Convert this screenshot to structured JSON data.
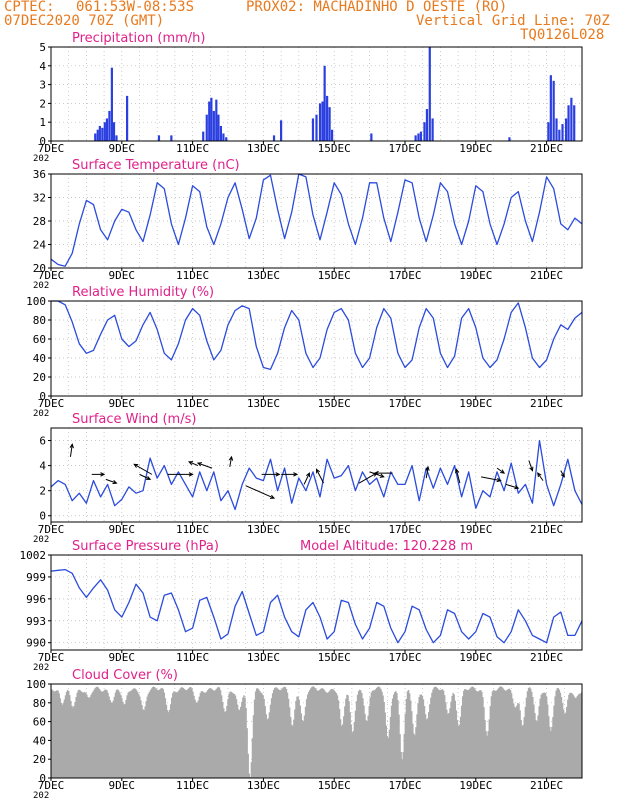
{
  "header": {
    "line1_left": "CPTEC:",
    "line1_coords": "061:53W-08:53S",
    "line1_station": "PROX02: MACHADINHO D OESTE (RO)",
    "line2_left": "07DEC2020 70Z (GMT)",
    "line2_right": "Vertical Grid Line: 70Z",
    "line3_right": "TQ0126L028"
  },
  "colors": {
    "header": "#e87a1e",
    "title": "#e0218a",
    "line": "#2b4bdc",
    "bar": "#2b3fe0",
    "cloud": "#aaaaaa",
    "arrow": "#000000"
  },
  "x_tick_labels": [
    "7DEC",
    "9DEC",
    "11DEC",
    "13DEC",
    "15DEC",
    "17DEC",
    "19DEC",
    "21DEC"
  ],
  "x_tick_sublabel": "202",
  "model_altitude": "Model Altitude: 120.228 m",
  "chart_data": [
    {
      "type": "bar",
      "title": "Precipitation (mm/h)",
      "x_range_days": [
        7,
        22
      ],
      "ylim": [
        0,
        5
      ],
      "yticks": [
        0,
        1,
        2,
        3,
        4,
        5
      ],
      "bars": [
        {
          "x": 8.25,
          "y": 0.4
        },
        {
          "x": 8.32,
          "y": 0.6
        },
        {
          "x": 8.38,
          "y": 0.8
        },
        {
          "x": 8.45,
          "y": 0.7
        },
        {
          "x": 8.52,
          "y": 1.0
        },
        {
          "x": 8.58,
          "y": 1.2
        },
        {
          "x": 8.65,
          "y": 1.6
        },
        {
          "x": 8.72,
          "y": 3.9
        },
        {
          "x": 8.78,
          "y": 1.0
        },
        {
          "x": 8.85,
          "y": 0.3
        },
        {
          "x": 9.15,
          "y": 2.4
        },
        {
          "x": 10.05,
          "y": 0.3
        },
        {
          "x": 10.4,
          "y": 0.3
        },
        {
          "x": 11.3,
          "y": 0.5
        },
        {
          "x": 11.4,
          "y": 1.4
        },
        {
          "x": 11.47,
          "y": 2.1
        },
        {
          "x": 11.53,
          "y": 2.3
        },
        {
          "x": 11.6,
          "y": 1.6
        },
        {
          "x": 11.67,
          "y": 2.2
        },
        {
          "x": 11.73,
          "y": 1.4
        },
        {
          "x": 11.8,
          "y": 0.8
        },
        {
          "x": 11.87,
          "y": 0.4
        },
        {
          "x": 11.95,
          "y": 0.2
        },
        {
          "x": 13.3,
          "y": 0.3
        },
        {
          "x": 13.5,
          "y": 1.1
        },
        {
          "x": 14.4,
          "y": 1.2
        },
        {
          "x": 14.5,
          "y": 1.4
        },
        {
          "x": 14.6,
          "y": 2.0
        },
        {
          "x": 14.67,
          "y": 2.1
        },
        {
          "x": 14.73,
          "y": 4.0
        },
        {
          "x": 14.8,
          "y": 2.4
        },
        {
          "x": 14.87,
          "y": 1.8
        },
        {
          "x": 14.94,
          "y": 0.6
        },
        {
          "x": 16.05,
          "y": 0.4
        },
        {
          "x": 17.3,
          "y": 0.3
        },
        {
          "x": 17.38,
          "y": 0.4
        },
        {
          "x": 17.45,
          "y": 0.5
        },
        {
          "x": 17.55,
          "y": 1.0
        },
        {
          "x": 17.62,
          "y": 1.7
        },
        {
          "x": 17.7,
          "y": 5.0
        },
        {
          "x": 17.78,
          "y": 1.2
        },
        {
          "x": 19.95,
          "y": 0.2
        },
        {
          "x": 21.05,
          "y": 1.0
        },
        {
          "x": 21.12,
          "y": 3.5
        },
        {
          "x": 21.2,
          "y": 3.2
        },
        {
          "x": 21.28,
          "y": 1.2
        },
        {
          "x": 21.36,
          "y": 0.6
        },
        {
          "x": 21.45,
          "y": 0.9
        },
        {
          "x": 21.55,
          "y": 1.2
        },
        {
          "x": 21.62,
          "y": 1.9
        },
        {
          "x": 21.7,
          "y": 2.3
        },
        {
          "x": 21.78,
          "y": 1.9
        }
      ]
    },
    {
      "type": "line",
      "title": "Surface Temperature (nC)",
      "x_range_days": [
        7,
        22
      ],
      "ylim": [
        20,
        36
      ],
      "yticks": [
        20,
        24,
        28,
        32,
        36
      ],
      "x": [
        7.0,
        7.2,
        7.4,
        7.6,
        7.8,
        8.0,
        8.2,
        8.4,
        8.6,
        8.8,
        9.0,
        9.2,
        9.4,
        9.6,
        9.8,
        10.0,
        10.2,
        10.4,
        10.6,
        10.8,
        11.0,
        11.2,
        11.4,
        11.6,
        11.8,
        12.0,
        12.2,
        12.4,
        12.6,
        12.8,
        13.0,
        13.2,
        13.4,
        13.6,
        13.8,
        14.0,
        14.2,
        14.4,
        14.6,
        14.8,
        15.0,
        15.2,
        15.4,
        15.6,
        15.8,
        16.0,
        16.2,
        16.4,
        16.6,
        16.8,
        17.0,
        17.2,
        17.4,
        17.6,
        17.8,
        18.0,
        18.2,
        18.4,
        18.6,
        18.8,
        19.0,
        19.2,
        19.4,
        19.6,
        19.8,
        20.0,
        20.2,
        20.4,
        20.6,
        20.8,
        21.0,
        21.2,
        21.4,
        21.6,
        21.8,
        22.0
      ],
      "values": [
        21.5,
        20.6,
        20.3,
        22.5,
        27.5,
        31.5,
        30.8,
        26.5,
        24.8,
        28.0,
        30.0,
        29.5,
        26.5,
        24.5,
        29.0,
        34.5,
        33.5,
        27.5,
        24.0,
        28.5,
        34.0,
        33.0,
        27.0,
        24.0,
        27.5,
        32.0,
        34.5,
        30.0,
        25.0,
        28.5,
        35.0,
        35.8,
        30.0,
        25.0,
        29.5,
        36.0,
        35.5,
        29.0,
        24.8,
        29.5,
        34.5,
        32.5,
        27.5,
        24.0,
        28.5,
        34.5,
        34.5,
        28.5,
        24.5,
        29.5,
        35.0,
        34.5,
        28.5,
        24.5,
        29.0,
        34.5,
        33.0,
        27.5,
        24.0,
        28.0,
        34.0,
        33.0,
        27.5,
        24.0,
        27.5,
        32.0,
        33.0,
        28.0,
        24.5,
        29.5,
        35.5,
        33.5,
        27.5,
        26.5,
        28.5,
        27.5
      ]
    },
    {
      "type": "line",
      "title": "Relative Humidity (%)",
      "x_range_days": [
        7,
        22
      ],
      "ylim": [
        0,
        100
      ],
      "yticks": [
        0,
        20,
        40,
        60,
        80,
        100
      ],
      "x": [
        7.0,
        7.2,
        7.4,
        7.6,
        7.8,
        8.0,
        8.2,
        8.4,
        8.6,
        8.8,
        9.0,
        9.2,
        9.4,
        9.6,
        9.8,
        10.0,
        10.2,
        10.4,
        10.6,
        10.8,
        11.0,
        11.2,
        11.4,
        11.6,
        11.8,
        12.0,
        12.2,
        12.4,
        12.6,
        12.8,
        13.0,
        13.2,
        13.4,
        13.6,
        13.8,
        14.0,
        14.2,
        14.4,
        14.6,
        14.8,
        15.0,
        15.2,
        15.4,
        15.6,
        15.8,
        16.0,
        16.2,
        16.4,
        16.6,
        16.8,
        17.0,
        17.2,
        17.4,
        17.6,
        17.8,
        18.0,
        18.2,
        18.4,
        18.6,
        18.8,
        19.0,
        19.2,
        19.4,
        19.6,
        19.8,
        20.0,
        20.2,
        20.4,
        20.6,
        20.8,
        21.0,
        21.2,
        21.4,
        21.6,
        21.8,
        22.0
      ],
      "values": [
        100,
        100,
        96,
        78,
        55,
        45,
        48,
        65,
        80,
        85,
        60,
        52,
        58,
        75,
        88,
        70,
        45,
        38,
        55,
        80,
        92,
        85,
        58,
        38,
        48,
        75,
        90,
        95,
        92,
        52,
        30,
        28,
        45,
        72,
        90,
        80,
        45,
        30,
        40,
        70,
        88,
        92,
        80,
        45,
        30,
        40,
        72,
        92,
        82,
        45,
        30,
        38,
        72,
        92,
        82,
        45,
        30,
        42,
        82,
        92,
        72,
        40,
        30,
        38,
        60,
        88,
        98,
        72,
        40,
        30,
        38,
        60,
        75,
        70,
        82,
        88
      ]
    },
    {
      "type": "line",
      "title": "Surface Wind (m/s)",
      "x_range_days": [
        7,
        22
      ],
      "ylim": [
        -0.5,
        7
      ],
      "yticks": [
        0,
        2,
        4,
        6
      ],
      "x": [
        7.0,
        7.2,
        7.4,
        7.6,
        7.8,
        8.0,
        8.2,
        8.4,
        8.6,
        8.8,
        9.0,
        9.2,
        9.4,
        9.6,
        9.8,
        10.0,
        10.2,
        10.4,
        10.6,
        10.8,
        11.0,
        11.2,
        11.4,
        11.6,
        11.8,
        12.0,
        12.2,
        12.4,
        12.6,
        12.8,
        13.0,
        13.2,
        13.4,
        13.6,
        13.8,
        14.0,
        14.2,
        14.4,
        14.6,
        14.8,
        15.0,
        15.2,
        15.4,
        15.6,
        15.8,
        16.0,
        16.2,
        16.4,
        16.6,
        16.8,
        17.0,
        17.2,
        17.4,
        17.6,
        17.8,
        18.0,
        18.2,
        18.4,
        18.6,
        18.8,
        19.0,
        19.2,
        19.4,
        19.6,
        19.8,
        20.0,
        20.2,
        20.4,
        20.6,
        20.8,
        21.0,
        21.2,
        21.4,
        21.6,
        21.8,
        22.0
      ],
      "values": [
        2.3,
        2.8,
        2.5,
        1.2,
        1.8,
        1.0,
        2.8,
        1.5,
        2.5,
        0.8,
        1.3,
        2.3,
        1.8,
        2.0,
        4.6,
        3.0,
        4.0,
        2.5,
        3.5,
        2.5,
        1.5,
        3.5,
        2.0,
        3.5,
        1.2,
        2.0,
        0.5,
        2.5,
        3.8,
        3.0,
        2.8,
        4.5,
        2.0,
        3.8,
        1.0,
        3.0,
        2.0,
        3.5,
        1.5,
        4.5,
        3.0,
        3.2,
        4.0,
        2.0,
        3.5,
        2.5,
        3.0,
        1.5,
        3.5,
        2.5,
        2.5,
        4.0,
        1.2,
        3.8,
        2.2,
        3.8,
        2.5,
        4.0,
        1.5,
        3.5,
        0.6,
        2.0,
        1.5,
        3.5,
        2.0,
        4.2,
        1.8,
        2.5,
        1.0,
        6.0,
        2.5,
        0.8,
        2.5,
        4.5,
        2.0,
        0.9
      ]
    },
    {
      "type": "line",
      "title": "Surface Pressure (hPa)",
      "x_range_days": [
        7,
        22
      ],
      "ylim": [
        989,
        1002
      ],
      "yticks": [
        990,
        993,
        996,
        999,
        1002
      ],
      "x": [
        7.0,
        7.2,
        7.4,
        7.6,
        7.8,
        8.0,
        8.2,
        8.4,
        8.6,
        8.8,
        9.0,
        9.2,
        9.4,
        9.6,
        9.8,
        10.0,
        10.2,
        10.4,
        10.6,
        10.8,
        11.0,
        11.2,
        11.4,
        11.6,
        11.8,
        12.0,
        12.2,
        12.4,
        12.6,
        12.8,
        13.0,
        13.2,
        13.4,
        13.6,
        13.8,
        14.0,
        14.2,
        14.4,
        14.6,
        14.8,
        15.0,
        15.2,
        15.4,
        15.6,
        15.8,
        16.0,
        16.2,
        16.4,
        16.6,
        16.8,
        17.0,
        17.2,
        17.4,
        17.6,
        17.8,
        18.0,
        18.2,
        18.4,
        18.6,
        18.8,
        19.0,
        19.2,
        19.4,
        19.6,
        19.8,
        20.0,
        20.2,
        20.4,
        20.6,
        20.8,
        21.0,
        21.2,
        21.4,
        21.6,
        21.8,
        22.0
      ],
      "values": [
        999.8,
        999.9,
        1000.0,
        999.5,
        997.5,
        996.2,
        997.5,
        998.6,
        997.2,
        994.5,
        993.5,
        995.5,
        998.0,
        996.8,
        993.5,
        993.0,
        996.5,
        996.8,
        994.5,
        991.5,
        992.0,
        995.8,
        996.2,
        993.5,
        990.5,
        991.2,
        995.0,
        997.0,
        994.0,
        991.0,
        991.5,
        995.5,
        996.5,
        993.5,
        991.5,
        990.8,
        994.5,
        995.5,
        993.5,
        990.5,
        991.5,
        995.8,
        995.5,
        992.5,
        990.5,
        992.0,
        995.5,
        995.0,
        992.0,
        990.0,
        991.5,
        995.0,
        994.5,
        991.8,
        990.0,
        991.0,
        994.5,
        994.0,
        991.5,
        990.5,
        991.5,
        994.0,
        993.5,
        990.8,
        990.0,
        991.5,
        994.5,
        993.0,
        991.0,
        990.5,
        990.0,
        993.5,
        994.2,
        991.0,
        991.0,
        993.0
      ]
    },
    {
      "type": "bar",
      "title": "Cloud Cover (%)",
      "x_range_days": [
        7,
        22
      ],
      "ylim": [
        0,
        100
      ],
      "yticks": [
        0,
        20,
        40,
        60,
        80,
        100
      ],
      "base_value": 94,
      "dips": [
        {
          "x": 7.3,
          "y": 78
        },
        {
          "x": 7.6,
          "y": 75
        },
        {
          "x": 8.05,
          "y": 85
        },
        {
          "x": 8.7,
          "y": 80
        },
        {
          "x": 9.05,
          "y": 78
        },
        {
          "x": 9.6,
          "y": 72
        },
        {
          "x": 10.3,
          "y": 70
        },
        {
          "x": 11.1,
          "y": 80
        },
        {
          "x": 11.9,
          "y": 70
        },
        {
          "x": 12.3,
          "y": 72
        },
        {
          "x": 12.6,
          "y": 0
        },
        {
          "x": 13.1,
          "y": 62
        },
        {
          "x": 13.8,
          "y": 55
        },
        {
          "x": 14.1,
          "y": 60
        },
        {
          "x": 15.2,
          "y": 55
        },
        {
          "x": 15.5,
          "y": 48
        },
        {
          "x": 15.9,
          "y": 60
        },
        {
          "x": 16.5,
          "y": 42
        },
        {
          "x": 16.9,
          "y": 20
        },
        {
          "x": 17.25,
          "y": 45
        },
        {
          "x": 17.6,
          "y": 62
        },
        {
          "x": 18.2,
          "y": 68
        },
        {
          "x": 18.5,
          "y": 55
        },
        {
          "x": 19.3,
          "y": 45
        },
        {
          "x": 20.1,
          "y": 75
        },
        {
          "x": 20.3,
          "y": 55
        },
        {
          "x": 20.7,
          "y": 60
        },
        {
          "x": 21.1,
          "y": 50
        },
        {
          "x": 21.5,
          "y": 68
        },
        {
          "x": 21.8,
          "y": 85
        }
      ]
    }
  ],
  "wind_arrows": [
    {
      "x": 7.55,
      "y": 4.7,
      "dx": 0.05,
      "dy": 1.0
    },
    {
      "x": 8.15,
      "y": 3.3,
      "dx": 0.35,
      "dy": 0.0
    },
    {
      "x": 8.55,
      "y": 2.9,
      "dx": 0.3,
      "dy": -0.3
    },
    {
      "x": 9.5,
      "y": 3.3,
      "dx": 0.3,
      "dy": -0.4
    },
    {
      "x": 9.85,
      "y": 3.3,
      "dx": -0.5,
      "dy": 0.8
    },
    {
      "x": 10.3,
      "y": 3.3,
      "dx": 0.7,
      "dy": 0.0
    },
    {
      "x": 11.15,
      "y": 4.0,
      "dx": -0.25,
      "dy": 0.3
    },
    {
      "x": 11.55,
      "y": 3.8,
      "dx": -0.4,
      "dy": 0.4
    },
    {
      "x": 12.05,
      "y": 3.9,
      "dx": 0.05,
      "dy": 0.8
    },
    {
      "x": 12.5,
      "y": 2.4,
      "dx": 0.8,
      "dy": -1.0
    },
    {
      "x": 12.95,
      "y": 3.3,
      "dx": 0.5,
      "dy": 0.0
    },
    {
      "x": 13.5,
      "y": 3.3,
      "dx": 0.45,
      "dy": 0.0
    },
    {
      "x": 14.15,
      "y": 2.5,
      "dx": 0.15,
      "dy": 0.9
    },
    {
      "x": 14.7,
      "y": 2.6,
      "dx": -0.2,
      "dy": 1.1
    },
    {
      "x": 15.7,
      "y": 2.6,
      "dx": 0.5,
      "dy": 0.8
    },
    {
      "x": 16.0,
      "y": 3.5,
      "dx": 0.4,
      "dy": -0.4
    },
    {
      "x": 16.65,
      "y": 3.4,
      "dx": -0.5,
      "dy": 0.0
    },
    {
      "x": 17.6,
      "y": 3.0,
      "dx": 0.05,
      "dy": 0.9
    },
    {
      "x": 18.55,
      "y": 2.6,
      "dx": -0.1,
      "dy": 1.1
    },
    {
      "x": 19.15,
      "y": 3.1,
      "dx": 0.55,
      "dy": -0.3
    },
    {
      "x": 19.6,
      "y": 3.8,
      "dx": 0.2,
      "dy": -0.4
    },
    {
      "x": 19.85,
      "y": 2.5,
      "dx": 0.35,
      "dy": -0.3
    },
    {
      "x": 20.5,
      "y": 4.4,
      "dx": 0.1,
      "dy": -0.8
    },
    {
      "x": 20.9,
      "y": 2.8,
      "dx": -0.15,
      "dy": 0.6
    },
    {
      "x": 21.4,
      "y": 3.6,
      "dx": 0.1,
      "dy": -0.5
    }
  ]
}
